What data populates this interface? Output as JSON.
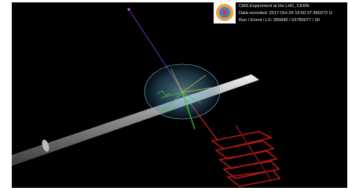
{
  "overlay": {
    "title": "CMS Experiment at the LHC, CERN",
    "date_line": "Data recorded: 2017-Oct-29 15:50:37.950272 G",
    "run_line": "Run / Event / LS: 305840 / 53780077 / 30"
  }
}
